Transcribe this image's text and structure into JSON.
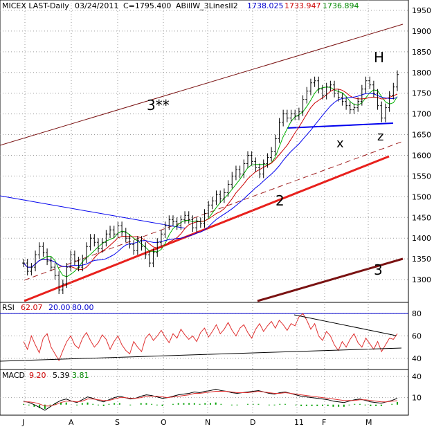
{
  "header": {
    "symbol": "MICEX LAST-Daily",
    "date": "03/24/2011",
    "close_label": "C=1795.400",
    "indicator": "ABillW_3LinesII2",
    "ind_v1": "1738.025",
    "ind_v2": "1733.947",
    "ind_v3": "1736.894"
  },
  "rsi_header": {
    "label": "RSI",
    "value": "62.07",
    "low": "20.00",
    "high": "80.00"
  },
  "macd_header": {
    "label": "MACD",
    "v1": "9.20",
    "v2": "5.39",
    "v3": "3.81"
  },
  "colors": {
    "grid": "#9a9a9a",
    "price_bars": "#000000",
    "ma_fast": "#00b000",
    "ma_mid": "#cc0000",
    "ma_slow": "#0000ee",
    "trendline_red": "#e8201c",
    "trendline_dark": "#7a1212",
    "rsi_line": "#e03030",
    "macd_line": "#000000",
    "macd_signal": "#e03030",
    "macd_hist": "#00a000",
    "annotation": "#e8201c"
  },
  "annotations": {
    "h": "H",
    "x": "x",
    "z": "z",
    "line_3ss": "3**",
    "line_2": "2",
    "line_3": "3"
  },
  "chart_data": [
    {
      "type": "line",
      "panel": "price",
      "ylim": [
        1245,
        1975
      ],
      "y_ticks": [
        1300,
        1350,
        1400,
        1450,
        1500,
        1550,
        1600,
        1650,
        1700,
        1750,
        1800,
        1850,
        1900,
        1950
      ],
      "x_ticks": [
        "J",
        "A",
        "S",
        "O",
        "N",
        "D",
        "11",
        "F",
        "M"
      ],
      "series": [
        {
          "values": [
            1340,
            1320,
            1330,
            1360,
            1380,
            1365,
            1345,
            1330,
            1310,
            1275,
            1290,
            1330,
            1360,
            1345,
            1330,
            1350,
            1380,
            1400,
            1390,
            1375,
            1390,
            1410,
            1420,
            1410,
            1430,
            1415,
            1400,
            1385,
            1370,
            1395,
            1380,
            1360,
            1340,
            1365,
            1390,
            1410,
            1430,
            1445,
            1440,
            1430,
            1445,
            1455,
            1445,
            1425,
            1440,
            1435,
            1460,
            1480,
            1490,
            1505,
            1495,
            1510,
            1530,
            1550,
            1565,
            1555,
            1580,
            1600,
            1585,
            1570,
            1555,
            1580,
            1595,
            1610,
            1640,
            1680,
            1700,
            1690,
            1700,
            1695,
            1705,
            1735,
            1755,
            1775,
            1780,
            1760,
            1745,
            1765,
            1770,
            1750,
            1740,
            1730,
            1720,
            1710,
            1715,
            1730,
            1760,
            1780,
            1770,
            1750,
            1720,
            1690,
            1715,
            1745,
            1765,
            1795
          ]
        }
      ]
    },
    {
      "type": "line",
      "panel": "RSI",
      "ylim": [
        30,
        90
      ],
      "y_ticks": [
        40,
        60,
        80
      ],
      "reference_levels": [
        20,
        80
      ],
      "series": [
        {
          "values": [
            55,
            48,
            60,
            52,
            45,
            58,
            62,
            50,
            44,
            38,
            47,
            55,
            60,
            52,
            49,
            58,
            63,
            56,
            50,
            54,
            61,
            57,
            48,
            55,
            60,
            52,
            47,
            44,
            55,
            50,
            46,
            58,
            62,
            56,
            60,
            65,
            59,
            54,
            62,
            58,
            66,
            61,
            57,
            60,
            55,
            63,
            67,
            59,
            64,
            70,
            62,
            66,
            72,
            65,
            60,
            67,
            70,
            63,
            58,
            66,
            71,
            64,
            69,
            73,
            67,
            74,
            70,
            65,
            71,
            69,
            77,
            80,
            74,
            66,
            71,
            60,
            56,
            64,
            60,
            52,
            47,
            55,
            50,
            57,
            62,
            54,
            50,
            58,
            53,
            48,
            55,
            46,
            52,
            58,
            57,
            62
          ]
        }
      ]
    },
    {
      "type": "bar",
      "panel": "MACD",
      "ylim": [
        -15,
        50
      ],
      "y_ticks": [
        10,
        40
      ],
      "series": [
        {
          "name": "MACD",
          "values": [
            5,
            3,
            0,
            -4,
            -8,
            -3,
            2,
            6,
            8,
            5,
            3,
            7,
            11,
            9,
            6,
            4,
            7,
            10,
            12,
            10,
            8,
            9,
            12,
            14,
            13,
            11,
            9,
            10,
            12,
            14,
            15,
            16,
            18,
            17,
            19,
            20,
            22,
            20,
            19,
            17,
            16,
            17,
            18,
            19,
            20,
            18,
            16,
            15,
            17,
            18,
            16,
            14,
            12,
            11,
            10,
            9,
            8,
            7,
            5,
            4,
            3,
            5,
            7,
            8,
            6,
            4,
            3,
            2,
            4,
            6,
            9
          ]
        },
        {
          "name": "Signal",
          "values": [
            4,
            4,
            3,
            1,
            -2,
            -2,
            0,
            3,
            5,
            5,
            4,
            5,
            8,
            8,
            7,
            6,
            6,
            8,
            10,
            10,
            9,
            9,
            10,
            12,
            12,
            12,
            11,
            10,
            11,
            12,
            13,
            14,
            16,
            16,
            17,
            18,
            19,
            19,
            19,
            18,
            17,
            17,
            17,
            18,
            19,
            18,
            17,
            16,
            16,
            17,
            16,
            15,
            14,
            13,
            12,
            11,
            10,
            9,
            8,
            7,
            6,
            6,
            6,
            7,
            7,
            6,
            5,
            4,
            4,
            5,
            5.4
          ]
        },
        {
          "name": "Histogram",
          "values": [
            1,
            -1,
            -3,
            -5,
            -6,
            -1,
            2,
            3,
            3,
            0,
            -1,
            2,
            3,
            1,
            -1,
            -2,
            1,
            2,
            2,
            0,
            -1,
            0,
            2,
            2,
            1,
            -1,
            -2,
            0,
            1,
            2,
            2,
            2,
            2,
            1,
            2,
            2,
            3,
            1,
            0,
            -1,
            -1,
            0,
            1,
            1,
            1,
            0,
            -1,
            -1,
            1,
            1,
            0,
            -1,
            -2,
            -2,
            -2,
            -2,
            -2,
            -2,
            -3,
            -3,
            -3,
            -1,
            1,
            1,
            -1,
            -2,
            -2,
            -2,
            0,
            1,
            3.8
          ]
        }
      ]
    }
  ]
}
